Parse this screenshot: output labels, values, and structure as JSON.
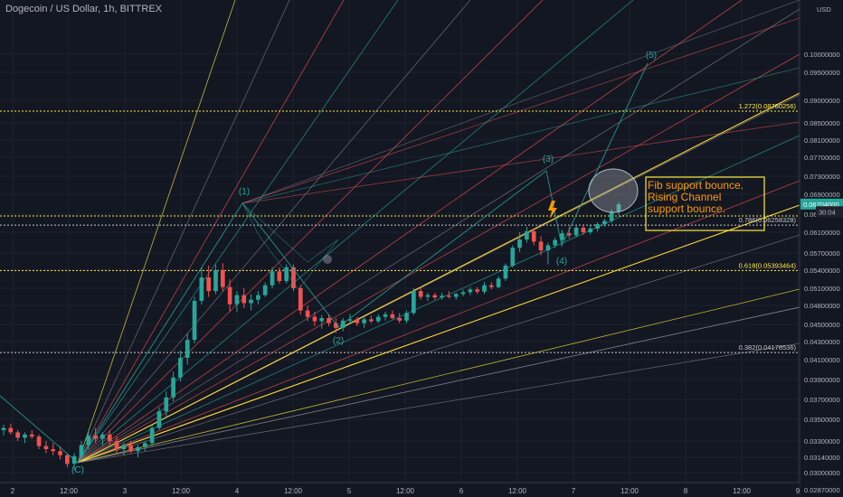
{
  "header": {
    "symbol_line": "Dogecoin / US Dollar, 1h, BITTREX"
  },
  "currency_label": "USD",
  "chart_data": {
    "type": "candlestick",
    "title": "Dogecoin / US Dollar, 1h, BITTREX",
    "ylim": [
      0.028,
      0.104
    ],
    "y_ticks": [
      0.0287,
      0.03,
      0.0314,
      0.033,
      0.035,
      0.037,
      0.039,
      0.041,
      0.043,
      0.045,
      0.048,
      0.051,
      0.054,
      0.057,
      0.061,
      0.065,
      0.069,
      0.073,
      0.077,
      0.081,
      0.085,
      0.09,
      0.095,
      0.1
    ],
    "y_tick_labels": [
      "0.02870000",
      "0.03000000",
      "0.03140000",
      "0.03300000",
      "0.03500000",
      "0.03700000",
      "0.03900000",
      "0.04100000",
      "0.04300000",
      "0.04500000",
      "0.04800000",
      "0.05100000",
      "0.05400000",
      "0.05700000",
      "0.06100000",
      "0.06500000",
      "0.06900000",
      "0.07300000",
      "0.07700000",
      "0.08100000",
      "0.08500000",
      "0.09000000",
      "0.09500000",
      "0.10000000"
    ],
    "x_ticks": [
      "2",
      "12:00",
      "3",
      "12:00",
      "4",
      "12:00",
      "5",
      "12:00",
      "6",
      "12:00",
      "7",
      "12:00",
      "8",
      "12:00",
      "9"
    ],
    "current_price": {
      "label": "0.06704000",
      "value": 0.06704
    },
    "countdown": {
      "label": "30:04",
      "value": 0.0655
    },
    "candles": [
      [
        0.034,
        0.0345,
        0.0335,
        0.0342
      ],
      [
        0.0342,
        0.0346,
        0.0336,
        0.0338
      ],
      [
        0.0338,
        0.034,
        0.033,
        0.0333
      ],
      [
        0.0333,
        0.0338,
        0.0328,
        0.0336
      ],
      [
        0.0336,
        0.034,
        0.0332,
        0.0334
      ],
      [
        0.0334,
        0.0336,
        0.0322,
        0.0325
      ],
      [
        0.0325,
        0.033,
        0.0318,
        0.0322
      ],
      [
        0.0322,
        0.0328,
        0.0316,
        0.032
      ],
      [
        0.032,
        0.0325,
        0.0312,
        0.0316
      ],
      [
        0.0316,
        0.0318,
        0.0305,
        0.0308
      ],
      [
        0.0308,
        0.0318,
        0.0302,
        0.0315
      ],
      [
        0.0315,
        0.033,
        0.0312,
        0.0326
      ],
      [
        0.0326,
        0.034,
        0.0322,
        0.0335
      ],
      [
        0.0335,
        0.0342,
        0.0328,
        0.0332
      ],
      [
        0.0332,
        0.0338,
        0.0325,
        0.0336
      ],
      [
        0.0336,
        0.034,
        0.0326,
        0.033
      ],
      [
        0.033,
        0.0334,
        0.0318,
        0.0322
      ],
      [
        0.0322,
        0.0328,
        0.0316,
        0.0326
      ],
      [
        0.0326,
        0.033,
        0.0318,
        0.032
      ],
      [
        0.032,
        0.0326,
        0.0314,
        0.0324
      ],
      [
        0.0324,
        0.033,
        0.032,
        0.0328
      ],
      [
        0.0328,
        0.0345,
        0.0325,
        0.0342
      ],
      [
        0.0342,
        0.0362,
        0.034,
        0.0358
      ],
      [
        0.0358,
        0.0378,
        0.0352,
        0.0372
      ],
      [
        0.0372,
        0.0398,
        0.0368,
        0.0392
      ],
      [
        0.0392,
        0.042,
        0.0388,
        0.0412
      ],
      [
        0.0412,
        0.044,
        0.0405,
        0.0432
      ],
      [
        0.0432,
        0.0495,
        0.0428,
        0.0488
      ],
      [
        0.0488,
        0.0545,
        0.0482,
        0.0528
      ],
      [
        0.0528,
        0.0548,
        0.0495,
        0.0505
      ],
      [
        0.0505,
        0.055,
        0.05,
        0.054
      ],
      [
        0.054,
        0.0552,
        0.0505,
        0.0512
      ],
      [
        0.0512,
        0.0525,
        0.047,
        0.0482
      ],
      [
        0.0482,
        0.0505,
        0.047,
        0.0498
      ],
      [
        0.0498,
        0.051,
        0.0476,
        0.0484
      ],
      [
        0.0484,
        0.05,
        0.0472,
        0.049
      ],
      [
        0.049,
        0.0505,
        0.0482,
        0.0498
      ],
      [
        0.0498,
        0.052,
        0.0495,
        0.0515
      ],
      [
        0.0515,
        0.0545,
        0.051,
        0.0538
      ],
      [
        0.0538,
        0.0545,
        0.0518,
        0.0522
      ],
      [
        0.0522,
        0.055,
        0.0518,
        0.0545
      ],
      [
        0.0545,
        0.055,
        0.0505,
        0.051
      ],
      [
        0.051,
        0.0515,
        0.0465,
        0.0472
      ],
      [
        0.0472,
        0.048,
        0.0455,
        0.0462
      ],
      [
        0.0462,
        0.047,
        0.0448,
        0.0455
      ],
      [
        0.0455,
        0.0465,
        0.0445,
        0.046
      ],
      [
        0.046,
        0.0466,
        0.0448,
        0.0452
      ],
      [
        0.0452,
        0.046,
        0.044,
        0.0446
      ],
      [
        0.0446,
        0.046,
        0.0442,
        0.0456
      ],
      [
        0.0456,
        0.0466,
        0.045,
        0.0458
      ],
      [
        0.0458,
        0.0462,
        0.0448,
        0.0452
      ],
      [
        0.0452,
        0.0462,
        0.0446,
        0.0458
      ],
      [
        0.0458,
        0.0464,
        0.0452,
        0.0455
      ],
      [
        0.0455,
        0.0466,
        0.0452,
        0.0462
      ],
      [
        0.0462,
        0.047,
        0.0456,
        0.0466
      ],
      [
        0.0466,
        0.0472,
        0.0458,
        0.046
      ],
      [
        0.046,
        0.0468,
        0.0452,
        0.0456
      ],
      [
        0.0456,
        0.0472,
        0.0452,
        0.0468
      ],
      [
        0.0468,
        0.051,
        0.0465,
        0.0505
      ],
      [
        0.0505,
        0.0512,
        0.049,
        0.0495
      ],
      [
        0.0495,
        0.0502,
        0.0488,
        0.0498
      ],
      [
        0.0498,
        0.0502,
        0.049,
        0.0494
      ],
      [
        0.0494,
        0.0502,
        0.049,
        0.0497
      ],
      [
        0.0497,
        0.0505,
        0.0492,
        0.0495
      ],
      [
        0.0495,
        0.0502,
        0.049,
        0.05
      ],
      [
        0.05,
        0.0508,
        0.0496,
        0.0503
      ],
      [
        0.0503,
        0.0512,
        0.0498,
        0.0508
      ],
      [
        0.0508,
        0.0512,
        0.05,
        0.0504
      ],
      [
        0.0504,
        0.052,
        0.05,
        0.0515
      ],
      [
        0.0515,
        0.052,
        0.0508,
        0.0512
      ],
      [
        0.0512,
        0.053,
        0.051,
        0.0526
      ],
      [
        0.0526,
        0.0552,
        0.0522,
        0.0548
      ],
      [
        0.0548,
        0.0585,
        0.0545,
        0.058
      ],
      [
        0.058,
        0.061,
        0.0572,
        0.0596
      ],
      [
        0.0596,
        0.0622,
        0.059,
        0.0612
      ],
      [
        0.0612,
        0.0618,
        0.0585,
        0.0592
      ],
      [
        0.0592,
        0.0602,
        0.0566,
        0.0575
      ],
      [
        0.0575,
        0.059,
        0.055,
        0.0585
      ],
      [
        0.0585,
        0.06,
        0.058,
        0.0595
      ],
      [
        0.0595,
        0.0615,
        0.059,
        0.0608
      ],
      [
        0.0608,
        0.0622,
        0.0598,
        0.0604
      ],
      [
        0.0604,
        0.0625,
        0.06,
        0.062
      ],
      [
        0.062,
        0.0628,
        0.0605,
        0.061
      ],
      [
        0.061,
        0.0625,
        0.0606,
        0.0618
      ],
      [
        0.0618,
        0.0632,
        0.0612,
        0.0628
      ],
      [
        0.0628,
        0.064,
        0.0622,
        0.0635
      ],
      [
        0.0635,
        0.066,
        0.063,
        0.0655
      ],
      [
        0.0655,
        0.0675,
        0.0648,
        0.067
      ]
    ],
    "fib_levels": [
      {
        "label": "1.272(0.08760256)",
        "value": 0.08760256,
        "color": "#ffeb3b"
      },
      {
        "label": "0.786(0.06258328)",
        "value": 0.06258328,
        "color": "#c8c8c8"
      },
      {
        "label": "0.618(0.05393464)",
        "value": 0.05393464,
        "color": "#ffeb3b"
      },
      {
        "label": "0.382(0.04178536)",
        "value": 0.04178536,
        "color": "#c8c8c8"
      }
    ],
    "wave_labels": [
      "(C)",
      "(1)",
      "(2)",
      "(3)",
      "(4)",
      "(5)"
    ],
    "annotation": "Fib support bounce.\nRising Channel\nsupport bounce.",
    "colors": {
      "up": "#26a69a",
      "down": "#ef5350",
      "annotation": "#ff9800",
      "channel": "#fdd835",
      "wave": "#26a69a",
      "background": "#131722"
    }
  }
}
